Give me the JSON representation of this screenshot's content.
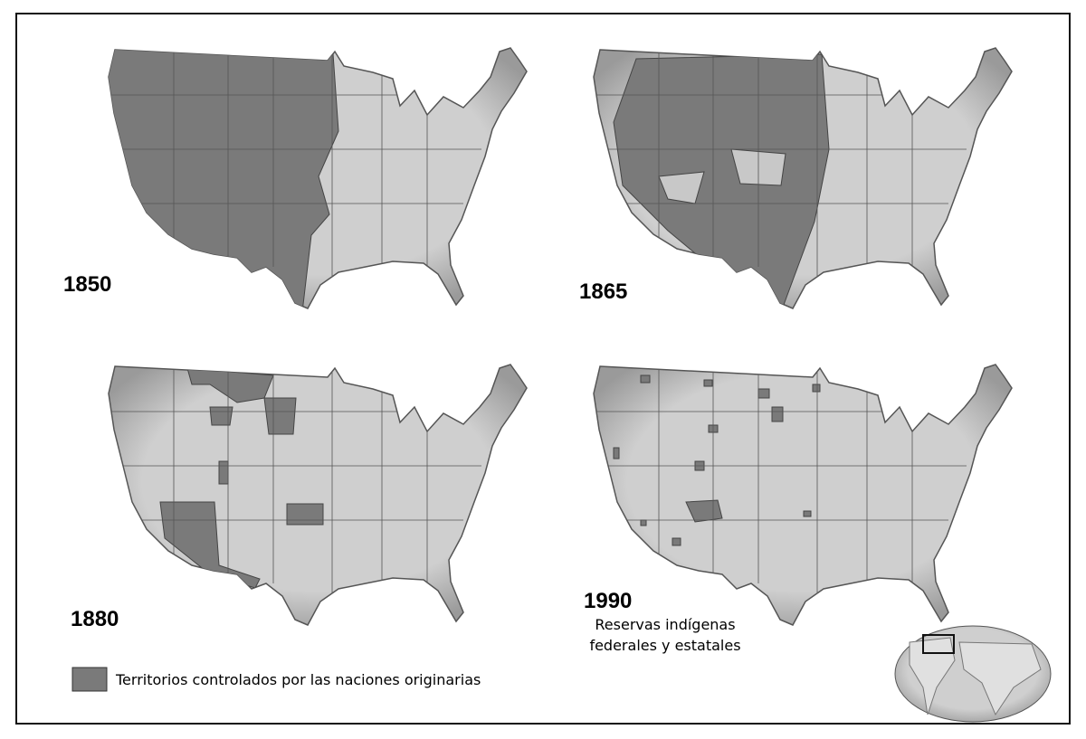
{
  "panels": [
    {
      "year": "1850"
    },
    {
      "year": "1865"
    },
    {
      "year": "1880"
    },
    {
      "year": "1990",
      "note": [
        "Reservas indígenas",
        "federales y estatales"
      ]
    }
  ],
  "legend": {
    "label": "Territorios controlados por las naciones originarias"
  }
}
